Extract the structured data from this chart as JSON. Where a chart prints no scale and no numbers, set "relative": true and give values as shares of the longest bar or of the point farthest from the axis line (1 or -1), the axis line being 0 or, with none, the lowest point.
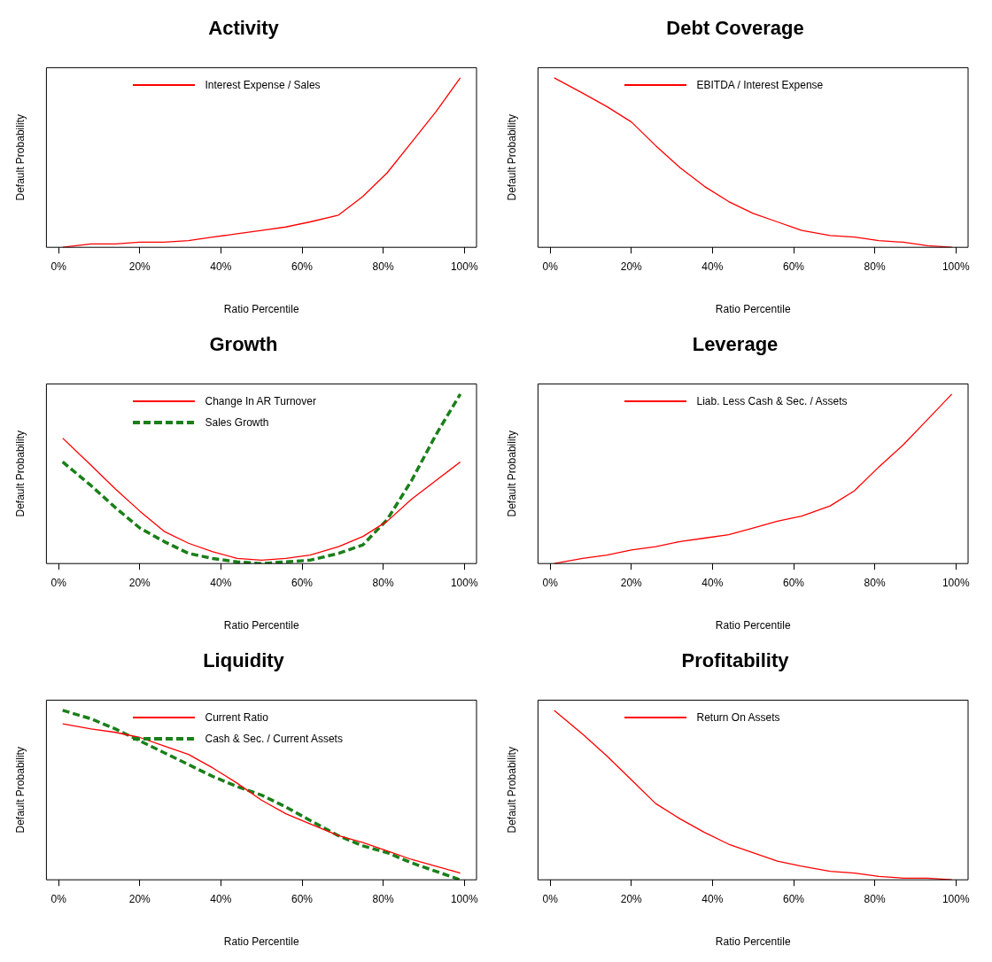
{
  "chart_data": [
    {
      "type": "line",
      "title": "Activity",
      "xlabel": "Ratio Percentile",
      "ylabel": "Default Probability",
      "relative": true,
      "legend": "top",
      "xlim": [
        -3,
        103
      ],
      "xticks": [
        {
          "value": 0,
          "label": "0%"
        },
        {
          "value": 20,
          "label": "20%"
        },
        {
          "value": 40,
          "label": "40%"
        },
        {
          "value": 60,
          "label": "60%"
        },
        {
          "value": 80,
          "label": "80%"
        },
        {
          "value": 100,
          "label": "100%"
        }
      ],
      "x": [
        1,
        8,
        14,
        20,
        26,
        32,
        38,
        44,
        50,
        56,
        62,
        69,
        75,
        81,
        87,
        93,
        99
      ],
      "series": [
        {
          "name": "Interest Expense / Sales",
          "color": "#ff0000",
          "line_style": "solid",
          "values": [
            0,
            0.02,
            0.02,
            0.03,
            0.03,
            0.04,
            0.06,
            0.08,
            0.1,
            0.12,
            0.15,
            0.19,
            0.3,
            0.44,
            0.62,
            0.8,
            1
          ]
        }
      ]
    },
    {
      "type": "line",
      "title": "Debt Coverage",
      "xlabel": "Ratio Percentile",
      "ylabel": "Default Probability",
      "relative": true,
      "legend": "top",
      "xlim": [
        -3,
        103
      ],
      "xticks": [
        {
          "value": 0,
          "label": "0%"
        },
        {
          "value": 20,
          "label": "20%"
        },
        {
          "value": 40,
          "label": "40%"
        },
        {
          "value": 60,
          "label": "60%"
        },
        {
          "value": 80,
          "label": "80%"
        },
        {
          "value": 100,
          "label": "100%"
        }
      ],
      "x": [
        1,
        8,
        14,
        20,
        26,
        32,
        38,
        44,
        50,
        56,
        62,
        69,
        75,
        81,
        87,
        93,
        99
      ],
      "series": [
        {
          "name": "EBITDA / Interest Expense",
          "color": "#ff0000",
          "line_style": "solid",
          "values": [
            1,
            0.91,
            0.83,
            0.74,
            0.6,
            0.47,
            0.36,
            0.27,
            0.2,
            0.15,
            0.1,
            0.07,
            0.06,
            0.04,
            0.03,
            0.01,
            0
          ]
        }
      ]
    },
    {
      "type": "line",
      "title": "Growth",
      "xlabel": "Ratio Percentile",
      "ylabel": "Default Probability",
      "relative": true,
      "legend": "top",
      "xlim": [
        -3,
        103
      ],
      "xticks": [
        {
          "value": 0,
          "label": "0%"
        },
        {
          "value": 20,
          "label": "20%"
        },
        {
          "value": 40,
          "label": "40%"
        },
        {
          "value": 60,
          "label": "60%"
        },
        {
          "value": 80,
          "label": "80%"
        },
        {
          "value": 100,
          "label": "100%"
        }
      ],
      "x": [
        1,
        8,
        14,
        20,
        26,
        32,
        38,
        44,
        50,
        56,
        62,
        69,
        75,
        81,
        87,
        93,
        99
      ],
      "series": [
        {
          "name": "Change In AR Turnover",
          "color": "#ff0000",
          "line_style": "solid",
          "values": [
            0.74,
            0.58,
            0.44,
            0.31,
            0.19,
            0.12,
            0.07,
            0.03,
            0.02,
            0.03,
            0.05,
            0.1,
            0.16,
            0.25,
            0.38,
            0.49,
            0.6
          ]
        },
        {
          "name": "Sales Growth",
          "color": "#1a7f1a",
          "line_style": "dashed",
          "values": [
            0.6,
            0.46,
            0.33,
            0.21,
            0.13,
            0.06,
            0.03,
            0.01,
            0,
            0.01,
            0.02,
            0.06,
            0.11,
            0.26,
            0.49,
            0.76,
            1
          ]
        }
      ]
    },
    {
      "type": "line",
      "title": "Leverage",
      "xlabel": "Ratio Percentile",
      "ylabel": "Default Probability",
      "relative": true,
      "legend": "top",
      "xlim": [
        -3,
        103
      ],
      "xticks": [
        {
          "value": 0,
          "label": "0%"
        },
        {
          "value": 20,
          "label": "20%"
        },
        {
          "value": 40,
          "label": "40%"
        },
        {
          "value": 60,
          "label": "60%"
        },
        {
          "value": 80,
          "label": "80%"
        },
        {
          "value": 100,
          "label": "100%"
        }
      ],
      "x": [
        1,
        8,
        14,
        20,
        26,
        32,
        38,
        44,
        50,
        56,
        62,
        69,
        75,
        81,
        87,
        93,
        99
      ],
      "series": [
        {
          "name": "Liab. Less Cash & Sec. / Assets",
          "color": "#ff0000",
          "line_style": "solid",
          "values": [
            0,
            0.03,
            0.05,
            0.08,
            0.1,
            0.13,
            0.15,
            0.17,
            0.21,
            0.25,
            0.28,
            0.34,
            0.43,
            0.57,
            0.7,
            0.85,
            1
          ]
        }
      ]
    },
    {
      "type": "line",
      "title": "Liquidity",
      "xlabel": "Ratio Percentile",
      "ylabel": "Default Probability",
      "relative": true,
      "legend": "top",
      "xlim": [
        -3,
        103
      ],
      "xticks": [
        {
          "value": 0,
          "label": "0%"
        },
        {
          "value": 20,
          "label": "20%"
        },
        {
          "value": 40,
          "label": "40%"
        },
        {
          "value": 60,
          "label": "60%"
        },
        {
          "value": 80,
          "label": "80%"
        },
        {
          "value": 100,
          "label": "100%"
        }
      ],
      "x": [
        1,
        8,
        14,
        20,
        26,
        32,
        38,
        44,
        50,
        56,
        62,
        69,
        75,
        81,
        87,
        93,
        99
      ],
      "series": [
        {
          "name": "Current Ratio",
          "color": "#ff0000",
          "line_style": "solid",
          "values": [
            0.92,
            0.89,
            0.87,
            0.84,
            0.79,
            0.74,
            0.66,
            0.57,
            0.47,
            0.39,
            0.33,
            0.26,
            0.22,
            0.17,
            0.12,
            0.08,
            0.04
          ]
        },
        {
          "name": "Cash & Sec. / Current Assets",
          "color": "#1a7f1a",
          "line_style": "dashed",
          "values": [
            1,
            0.95,
            0.89,
            0.82,
            0.75,
            0.68,
            0.61,
            0.55,
            0.5,
            0.43,
            0.35,
            0.26,
            0.2,
            0.16,
            0.1,
            0.05,
            0
          ]
        }
      ]
    },
    {
      "type": "line",
      "title": "Profitability",
      "xlabel": "Ratio Percentile",
      "ylabel": "Default Probability",
      "relative": true,
      "legend": "top",
      "xlim": [
        -3,
        103
      ],
      "xticks": [
        {
          "value": 0,
          "label": "0%"
        },
        {
          "value": 20,
          "label": "20%"
        },
        {
          "value": 40,
          "label": "40%"
        },
        {
          "value": 60,
          "label": "60%"
        },
        {
          "value": 80,
          "label": "80%"
        },
        {
          "value": 100,
          "label": "100%"
        }
      ],
      "x": [
        1,
        8,
        14,
        20,
        26,
        32,
        38,
        44,
        50,
        56,
        62,
        69,
        75,
        81,
        87,
        93,
        99
      ],
      "series": [
        {
          "name": "Return On Assets",
          "color": "#ff0000",
          "line_style": "solid",
          "values": [
            1,
            0.86,
            0.73,
            0.59,
            0.45,
            0.36,
            0.28,
            0.21,
            0.16,
            0.11,
            0.08,
            0.05,
            0.04,
            0.02,
            0.01,
            0.01,
            0
          ]
        }
      ]
    }
  ]
}
